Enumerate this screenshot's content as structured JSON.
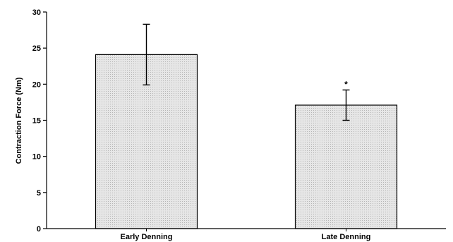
{
  "chart_data": {
    "type": "bar",
    "title": "",
    "xlabel": "",
    "ylabel": "Contraction Force (Nm)",
    "ylim": [
      0,
      30
    ],
    "yticks": [
      0,
      5,
      10,
      15,
      20,
      25,
      30
    ],
    "categories": [
      "Early Denning",
      "Late Denning"
    ],
    "values": [
      24.1,
      17.1
    ],
    "error_upper": [
      28.3,
      19.2
    ],
    "error_lower": [
      19.9,
      15.0
    ],
    "annotations": [
      "",
      "*"
    ],
    "bar_fill": "#e3e3e3",
    "bar_stroke": "#000000",
    "grid": false,
    "legend": "none"
  }
}
